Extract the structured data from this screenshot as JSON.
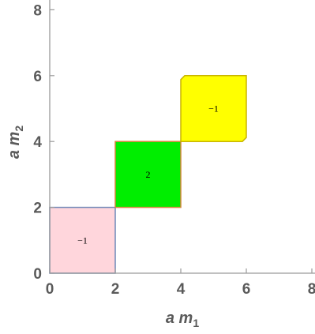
{
  "chart_data": {
    "type": "region",
    "xlabel_parts": [
      "a",
      " ",
      "m",
      "1"
    ],
    "ylabel_parts": [
      "a",
      " ",
      "m",
      "2"
    ],
    "xlim": [
      0,
      8
    ],
    "ylim": [
      0,
      8
    ],
    "xticks": [
      "0",
      "2",
      "4",
      "6",
      "8"
    ],
    "yticks": [
      "0",
      "2",
      "4",
      "6",
      "8"
    ],
    "frame": "left-bottom",
    "grid": false,
    "regions": [
      {
        "x": [
          0,
          2
        ],
        "y": [
          0,
          2
        ],
        "label": "−1",
        "fill": "#ffd6dc",
        "stroke": "#6f88b8",
        "corner": false
      },
      {
        "x": [
          2,
          4
        ],
        "y": [
          2,
          4
        ],
        "label": "2",
        "fill": "#00ee00",
        "stroke": "#d9823b",
        "corner": false
      },
      {
        "x": [
          4,
          6
        ],
        "y": [
          4,
          6
        ],
        "label": "−1",
        "fill": "#ffff00",
        "stroke": "#c8b400",
        "corner": true
      }
    ]
  }
}
